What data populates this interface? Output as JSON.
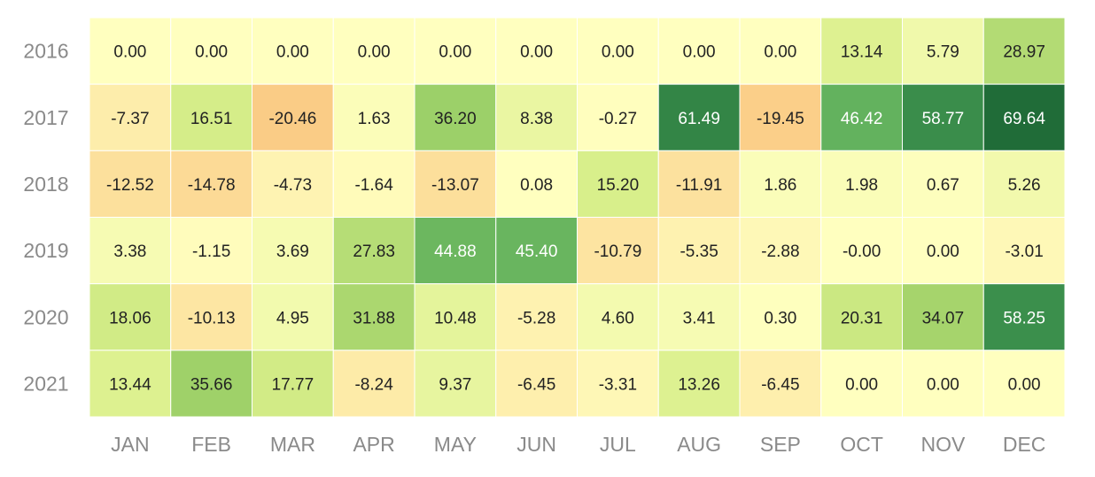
{
  "chart_data": {
    "type": "heatmap",
    "title": "",
    "xlabel": "",
    "ylabel": "",
    "x_categories": [
      "JAN",
      "FEB",
      "MAR",
      "APR",
      "MAY",
      "JUN",
      "JUL",
      "AUG",
      "SEP",
      "OCT",
      "NOV",
      "DEC"
    ],
    "y_categories": [
      "2016",
      "2017",
      "2018",
      "2019",
      "2020",
      "2021"
    ],
    "values": [
      [
        "0.00",
        "0.00",
        "0.00",
        "0.00",
        "0.00",
        "0.00",
        "0.00",
        "0.00",
        "0.00",
        "13.14",
        "5.79",
        "28.97"
      ],
      [
        "-7.37",
        "16.51",
        "-20.46",
        "1.63",
        "36.20",
        "8.38",
        "-0.27",
        "61.49",
        "-19.45",
        "46.42",
        "58.77",
        "69.64"
      ],
      [
        "-12.52",
        "-14.78",
        "-4.73",
        "-1.64",
        "-13.07",
        "0.08",
        "15.20",
        "-11.91",
        "1.86",
        "1.98",
        "0.67",
        "5.26"
      ],
      [
        "3.38",
        "-1.15",
        "3.69",
        "27.83",
        "44.88",
        "45.40",
        "-10.79",
        "-5.35",
        "-2.88",
        "-0.00",
        "0.00",
        "-3.01"
      ],
      [
        "18.06",
        "-10.13",
        "4.95",
        "31.88",
        "10.48",
        "-5.28",
        "4.60",
        "3.41",
        "0.30",
        "20.31",
        "34.07",
        "58.25"
      ],
      [
        "13.44",
        "35.66",
        "17.77",
        "-8.24",
        "9.37",
        "-6.45",
        "-3.31",
        "13.26",
        "-6.45",
        "0.00",
        "0.00",
        "0.00"
      ]
    ],
    "colormap": "RdYlGn",
    "color_range": [
      -70,
      70
    ],
    "colormap_stops": [
      {
        "v": -70,
        "color": "#d73027"
      },
      {
        "v": -35,
        "color": "#f7a85e"
      },
      {
        "v": 0,
        "color": "#ffffbf"
      },
      {
        "v": 15,
        "color": "#d9ef8b"
      },
      {
        "v": 35,
        "color": "#a3d36a"
      },
      {
        "v": 50,
        "color": "#4fa85a"
      },
      {
        "v": 70,
        "color": "#1f6b37"
      }
    ],
    "grid_line_color": "#ffffff",
    "tick_color": "#8a8a8a",
    "label_dark_color": "#222222",
    "label_light_color": "#ffffff",
    "label_light_threshold": 40
  }
}
